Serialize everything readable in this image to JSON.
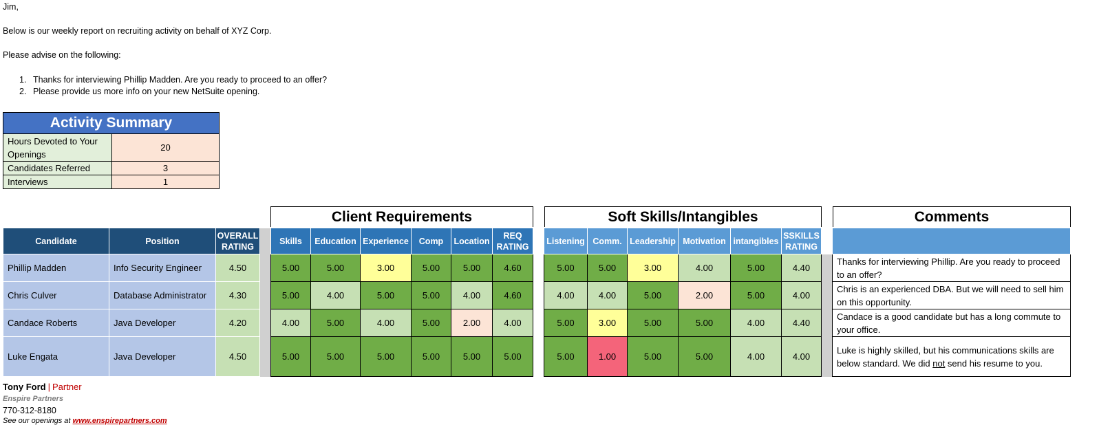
{
  "email": {
    "greeting": "Jim,",
    "intro": "Below is our weekly report on recruiting activity on behalf of XYZ Corp.",
    "advise": "Please advise on the following:",
    "items": [
      {
        "num": "1.",
        "text": "Thanks for interviewing Phillip Madden.  Are you ready to proceed to an offer?"
      },
      {
        "num": "2.",
        "text": "Please provide us more info on your new NetSuite opening."
      }
    ]
  },
  "summary": {
    "title": "Activity Summary",
    "rows": [
      {
        "label": "Hours Devoted to Your Openings",
        "value": "20"
      },
      {
        "label": "Candidates Referred",
        "value": "3"
      },
      {
        "label": "Interviews",
        "value": "1"
      }
    ]
  },
  "sections": {
    "client": "Client Requirements",
    "soft": "Soft Skills/Intangibles",
    "comments": "Comments"
  },
  "columns": {
    "candidate": "Candidate",
    "position": "Position",
    "overall": "OVERALL RATING",
    "client": [
      "Skills",
      "Education",
      "Experience",
      "Comp",
      "Location",
      "REQ RATING"
    ],
    "soft": [
      "Listening",
      "Comm.",
      "Leadership",
      "Motivation",
      "intangibles",
      "SSKILLS RATING"
    ]
  },
  "colors": {
    "score5": "#70ad47",
    "score4": "#c6e0b4",
    "score3": "#ffff99",
    "score2": "#fce4d6",
    "score1": "#f4647a"
  },
  "candidates": [
    {
      "name": "Phillip Madden",
      "position": "Info Security Engineer",
      "overall": "4.50",
      "client": [
        "5.00",
        "5.00",
        "3.00",
        "5.00",
        "5.00",
        "4.60"
      ],
      "soft": [
        "5.00",
        "5.00",
        "3.00",
        "4.00",
        "5.00",
        "4.40"
      ],
      "comment": "Thanks for interviewing Phillip.  Are you ready to proceed to an offer?"
    },
    {
      "name": "Chris Culver",
      "position": "Database Administrator",
      "overall": "4.30",
      "client": [
        "5.00",
        "4.00",
        "5.00",
        "5.00",
        "4.00",
        "4.60"
      ],
      "soft": [
        "4.00",
        "4.00",
        "5.00",
        "2.00",
        "5.00",
        "4.00"
      ],
      "comment": "Chris is an experienced DBA. But we will need to sell him on this opportunity."
    },
    {
      "name": "Candace Roberts",
      "position": "Java Developer",
      "overall": "4.20",
      "client": [
        "4.00",
        "5.00",
        "4.00",
        "5.00",
        "2.00",
        "4.00"
      ],
      "soft": [
        "5.00",
        "3.00",
        "5.00",
        "5.00",
        "4.00",
        "4.40"
      ],
      "comment": "Candace is a good candidate but has a long commute to your office."
    },
    {
      "name": "Luke Engata",
      "position": "Java Developer",
      "overall": "4.50",
      "client": [
        "5.00",
        "5.00",
        "5.00",
        "5.00",
        "5.00",
        "5.00"
      ],
      "soft": [
        "5.00",
        "1.00",
        "5.00",
        "5.00",
        "4.00",
        "4.00"
      ],
      "comment_parts": [
        "Luke is highly skilled, but his communications skills are below standard.  We did ",
        "not",
        " send his resume to you."
      ]
    }
  ],
  "signature": {
    "name": "Tony Ford",
    "bar": "|",
    "role": "Partner",
    "company": "Enspire Partners",
    "phone": "770-312-8180",
    "openings_text": "See our openings at ",
    "website": "www.enspirepartners.com"
  }
}
